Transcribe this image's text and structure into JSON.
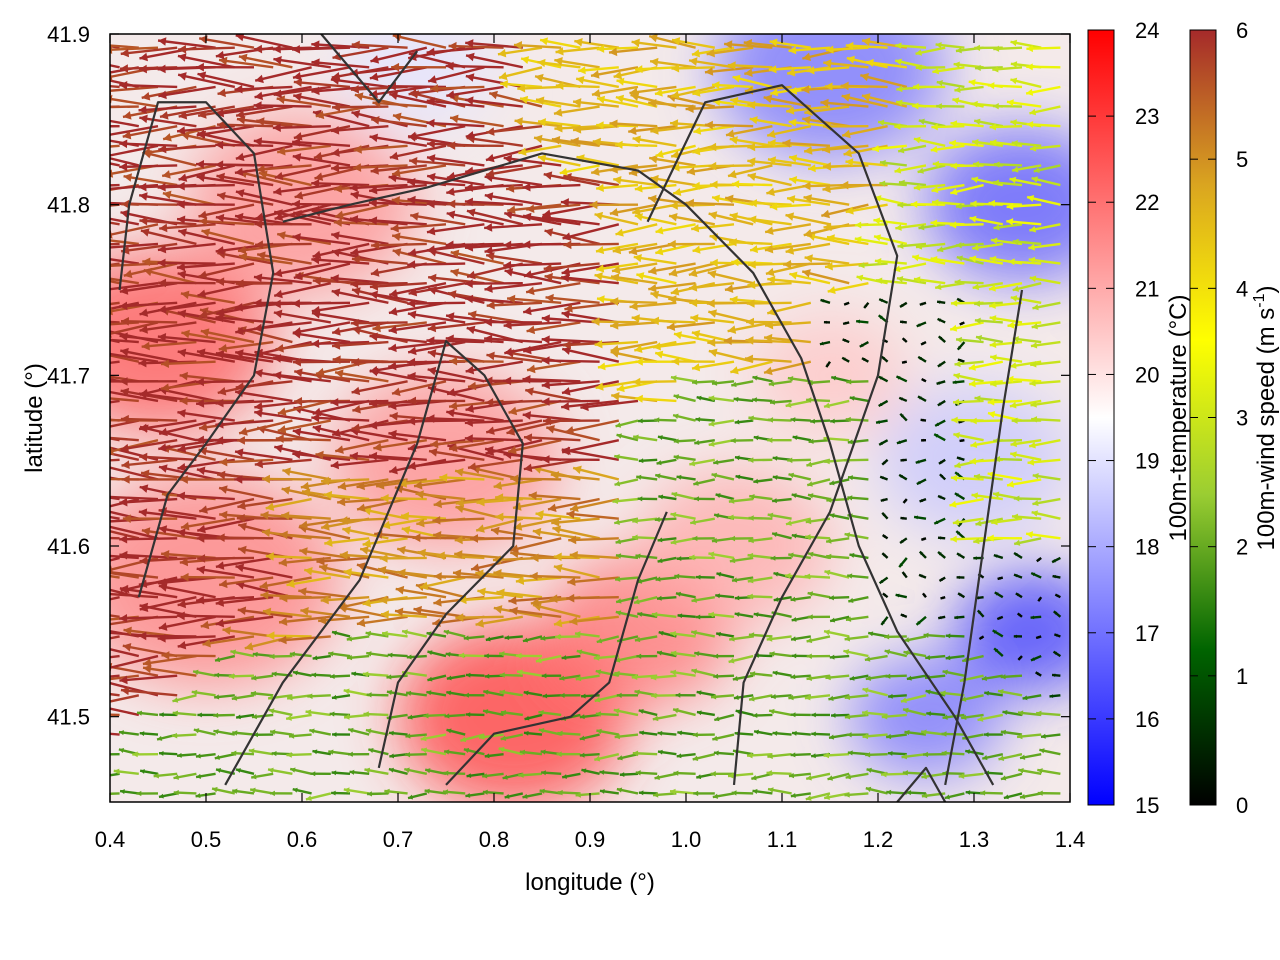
{
  "chart_data": {
    "type": "heatmap",
    "xlabel": "longitude (°)",
    "ylabel": "latitude (°)",
    "xlim": [
      0.4,
      1.4
    ],
    "ylim": [
      41.45,
      41.9
    ],
    "xticks": [
      "0.4",
      "0.5",
      "0.6",
      "0.7",
      "0.8",
      "0.9",
      "1.0",
      "1.1",
      "1.2",
      "1.3",
      "1.4"
    ],
    "yticks": [
      "41.5",
      "41.6",
      "41.7",
      "41.8",
      "41.9"
    ],
    "colorbars": [
      {
        "label": "100m-temperature (°C)",
        "min": 15,
        "max": 24,
        "ticks": [
          "15",
          "16",
          "17",
          "18",
          "19",
          "20",
          "21",
          "22",
          "23",
          "24"
        ],
        "colors": [
          "#0000ff",
          "#ffffff",
          "#ff0000"
        ]
      },
      {
        "label_main": "100m-wind speed (m s",
        "label_sup": "-1",
        "label_end": ")",
        "min": 0,
        "max": 6,
        "ticks": [
          "0",
          "1",
          "2",
          "3",
          "4",
          "5",
          "6"
        ],
        "colors": [
          "#000000",
          "#006400",
          "#9acd32",
          "#ffff00",
          "#daa520",
          "#a52a2a"
        ]
      }
    ],
    "temperature_blobs": [
      {
        "lon": 0.45,
        "lat": 41.72,
        "value": 22.5,
        "r": 0.12
      },
      {
        "lon": 0.5,
        "lat": 41.58,
        "value": 21.8,
        "r": 0.14
      },
      {
        "lon": 0.6,
        "lat": 41.8,
        "value": 21.5,
        "r": 0.12
      },
      {
        "lon": 0.82,
        "lat": 41.5,
        "value": 23.0,
        "r": 0.12
      },
      {
        "lon": 0.95,
        "lat": 41.55,
        "value": 22.0,
        "r": 0.1
      },
      {
        "lon": 0.75,
        "lat": 41.65,
        "value": 21.5,
        "r": 0.12
      },
      {
        "lon": 1.05,
        "lat": 41.6,
        "value": 21.0,
        "r": 0.1
      },
      {
        "lon": 1.15,
        "lat": 41.7,
        "value": 20.5,
        "r": 0.08
      },
      {
        "lon": 1.15,
        "lat": 41.88,
        "value": 17.0,
        "r": 0.12
      },
      {
        "lon": 1.35,
        "lat": 41.8,
        "value": 16.5,
        "r": 0.1
      },
      {
        "lon": 1.36,
        "lat": 41.55,
        "value": 16.0,
        "r": 0.08
      },
      {
        "lon": 1.25,
        "lat": 41.5,
        "value": 17.0,
        "r": 0.08
      },
      {
        "lon": 1.3,
        "lat": 41.65,
        "value": 18.5,
        "r": 0.1
      },
      {
        "lon": 0.72,
        "lat": 41.88,
        "value": 19.0,
        "r": 0.08
      }
    ],
    "wind_field": {
      "direction": "from east (arrows point west)",
      "regions": [
        {
          "lon": [
            0.4,
            0.6
          ],
          "lat": [
            41.55,
            41.8
          ],
          "speed": 6
        },
        {
          "lon": [
            0.6,
            0.95
          ],
          "lat": [
            41.65,
            41.82
          ],
          "speed": 6
        },
        {
          "lon": [
            0.6,
            0.95
          ],
          "lat": [
            41.55,
            41.65
          ],
          "speed": 5
        },
        {
          "lon": [
            0.95,
            1.15
          ],
          "lat": [
            41.7,
            41.85
          ],
          "speed": 4.5
        },
        {
          "lon": [
            1.0,
            1.2
          ],
          "lat": [
            41.5,
            41.7
          ],
          "speed": 2
        },
        {
          "lon": [
            1.1,
            1.3
          ],
          "lat": [
            41.55,
            41.75
          ],
          "speed": 0.5
        },
        {
          "lon": [
            0.7,
            0.9
          ],
          "lat": [
            41.48,
            41.55
          ],
          "speed": 2
        },
        {
          "lon": [
            1.3,
            1.4
          ],
          "lat": [
            41.6,
            41.9
          ],
          "speed": 3
        }
      ]
    },
    "contours": [
      [
        [
          0.43,
          41.57
        ],
        [
          0.46,
          41.63
        ],
        [
          0.5,
          41.66
        ],
        [
          0.55,
          41.7
        ],
        [
          0.57,
          41.76
        ],
        [
          0.55,
          41.83
        ],
        [
          0.5,
          41.86
        ],
        [
          0.45,
          41.86
        ],
        [
          0.42,
          41.8
        ],
        [
          0.41,
          41.75
        ]
      ],
      [
        [
          0.52,
          41.46
        ],
        [
          0.58,
          41.52
        ],
        [
          0.66,
          41.58
        ],
        [
          0.72,
          41.66
        ],
        [
          0.75,
          41.72
        ],
        [
          0.79,
          41.7
        ],
        [
          0.83,
          41.66
        ],
        [
          0.82,
          41.6
        ],
        [
          0.75,
          41.56
        ],
        [
          0.7,
          41.52
        ],
        [
          0.68,
          41.47
        ]
      ],
      [
        [
          0.58,
          41.79
        ],
        [
          0.65,
          41.8
        ],
        [
          0.73,
          41.81
        ],
        [
          0.85,
          41.83
        ],
        [
          0.95,
          41.82
        ],
        [
          1.0,
          41.8
        ],
        [
          1.07,
          41.76
        ],
        [
          1.12,
          41.71
        ],
        [
          1.15,
          41.66
        ],
        [
          1.18,
          41.6
        ],
        [
          1.22,
          41.55
        ],
        [
          1.28,
          41.5
        ],
        [
          1.32,
          41.46
        ]
      ],
      [
        [
          0.96,
          41.79
        ],
        [
          1.02,
          41.86
        ],
        [
          1.1,
          41.87
        ],
        [
          1.18,
          41.83
        ],
        [
          1.22,
          41.77
        ],
        [
          1.2,
          41.7
        ],
        [
          1.15,
          41.62
        ],
        [
          1.1,
          41.57
        ],
        [
          1.06,
          41.52
        ],
        [
          1.05,
          41.46
        ]
      ],
      [
        [
          0.62,
          41.9
        ],
        [
          0.68,
          41.86
        ],
        [
          0.72,
          41.89
        ]
      ],
      [
        [
          0.75,
          41.46
        ],
        [
          0.8,
          41.49
        ],
        [
          0.88,
          41.5
        ],
        [
          0.92,
          41.52
        ],
        [
          0.95,
          41.58
        ],
        [
          0.98,
          41.62
        ]
      ],
      [
        [
          1.35,
          41.75
        ],
        [
          1.33,
          41.68
        ],
        [
          1.31,
          41.6
        ],
        [
          1.29,
          41.52
        ],
        [
          1.27,
          41.46
        ]
      ],
      [
        [
          1.22,
          41.45
        ],
        [
          1.25,
          41.47
        ],
        [
          1.27,
          41.45
        ]
      ]
    ]
  }
}
